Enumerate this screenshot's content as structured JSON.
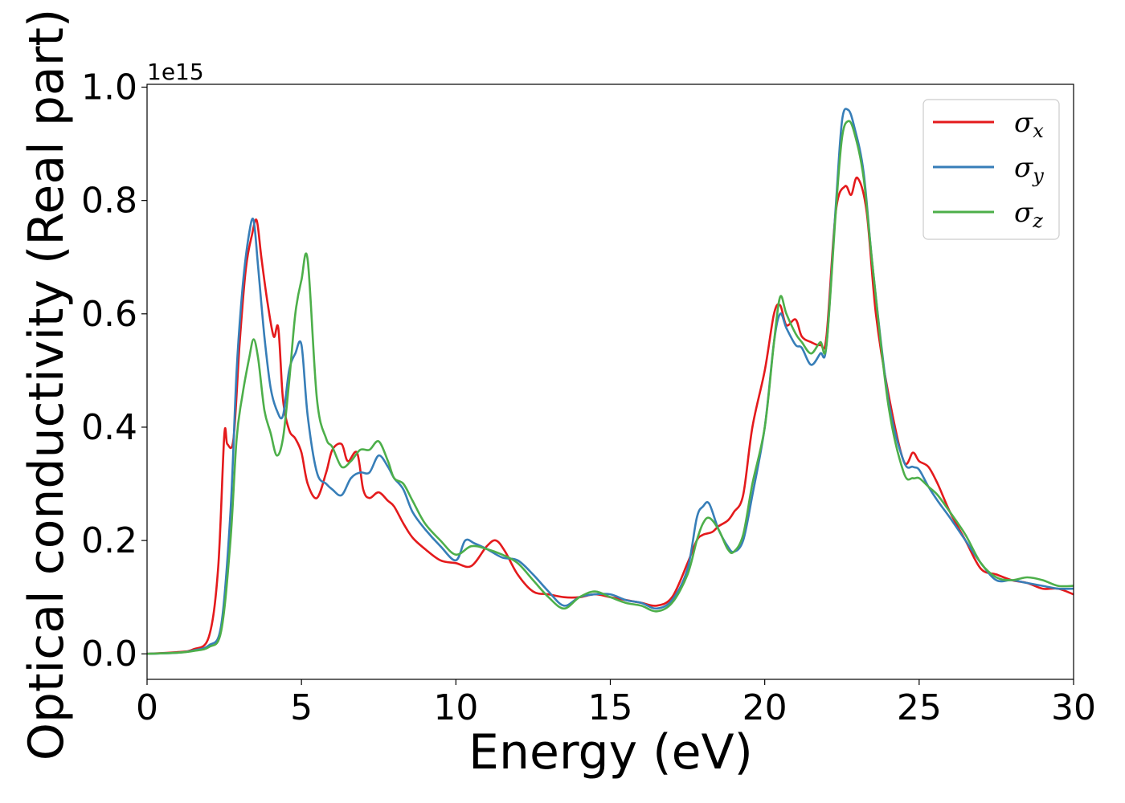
{
  "chart_data": {
    "type": "line",
    "title": "",
    "xlabel": "Energy (eV)",
    "ylabel": "Optical conductivity (Real part)",
    "y_offset_label": "1e15",
    "xlim": [
      0,
      30
    ],
    "ylim": [
      -0.045,
      1.005
    ],
    "xticks": [
      0,
      5,
      10,
      15,
      20,
      25,
      30
    ],
    "xtick_labels": [
      "0",
      "5",
      "10",
      "15",
      "20",
      "25",
      "30"
    ],
    "yticks": [
      0.0,
      0.2,
      0.4,
      0.6,
      0.8,
      1.0
    ],
    "ytick_labels": [
      "0.0",
      "0.2",
      "0.4",
      "0.6",
      "0.8",
      "1.0"
    ],
    "grid": false,
    "legend_position": "top-right",
    "series": [
      {
        "name": "σx",
        "symbol": "σ",
        "subscript": "x",
        "color": "#e41a1c",
        "x": [
          0,
          1,
          1.5,
          2,
          2.3,
          2.5,
          2.6,
          2.8,
          3.0,
          3.2,
          3.4,
          3.55,
          3.7,
          3.9,
          4.1,
          4.25,
          4.4,
          4.6,
          4.8,
          5.0,
          5.2,
          5.5,
          5.8,
          6.0,
          6.3,
          6.5,
          6.8,
          7.0,
          7.2,
          7.5,
          7.8,
          8.0,
          8.3,
          8.6,
          9.0,
          9.5,
          10.0,
          10.5,
          11.0,
          11.3,
          11.6,
          12.0,
          12.5,
          13.0,
          13.5,
          14.0,
          14.5,
          15.0,
          15.5,
          16.0,
          16.5,
          17.0,
          17.5,
          17.8,
          18.0,
          18.3,
          18.5,
          18.8,
          19.0,
          19.3,
          19.6,
          20.0,
          20.3,
          20.5,
          20.7,
          21.0,
          21.2,
          21.5,
          21.8,
          22.0,
          22.3,
          22.6,
          22.8,
          23.0,
          23.3,
          23.6,
          24.0,
          24.5,
          24.8,
          25.0,
          25.3,
          25.6,
          26.0,
          26.5,
          27.0,
          27.5,
          28.0,
          28.5,
          29.0,
          29.5,
          30.0
        ],
        "y": [
          0.0,
          0.003,
          0.008,
          0.03,
          0.15,
          0.385,
          0.37,
          0.38,
          0.55,
          0.68,
          0.74,
          0.765,
          0.7,
          0.62,
          0.56,
          0.575,
          0.45,
          0.395,
          0.38,
          0.355,
          0.3,
          0.275,
          0.32,
          0.36,
          0.37,
          0.34,
          0.355,
          0.29,
          0.275,
          0.285,
          0.27,
          0.26,
          0.23,
          0.205,
          0.185,
          0.165,
          0.16,
          0.155,
          0.19,
          0.2,
          0.18,
          0.14,
          0.11,
          0.105,
          0.1,
          0.1,
          0.105,
          0.1,
          0.095,
          0.09,
          0.085,
          0.1,
          0.16,
          0.2,
          0.21,
          0.215,
          0.225,
          0.235,
          0.25,
          0.28,
          0.4,
          0.5,
          0.6,
          0.615,
          0.58,
          0.59,
          0.56,
          0.55,
          0.545,
          0.56,
          0.78,
          0.825,
          0.81,
          0.84,
          0.78,
          0.6,
          0.46,
          0.34,
          0.355,
          0.34,
          0.33,
          0.3,
          0.25,
          0.2,
          0.15,
          0.14,
          0.13,
          0.125,
          0.115,
          0.115,
          0.105
        ]
      },
      {
        "name": "σy",
        "symbol": "σ",
        "subscript": "y",
        "color": "#377eb8",
        "x": [
          0,
          1,
          1.5,
          2,
          2.4,
          2.7,
          2.9,
          3.1,
          3.3,
          3.45,
          3.6,
          3.8,
          4.0,
          4.2,
          4.4,
          4.6,
          4.8,
          5.0,
          5.2,
          5.5,
          5.8,
          6.0,
          6.3,
          6.6,
          6.9,
          7.2,
          7.5,
          7.8,
          8.0,
          8.3,
          8.6,
          9.0,
          9.5,
          10.0,
          10.3,
          10.6,
          11.0,
          11.5,
          12.0,
          12.5,
          13.0,
          13.5,
          14.0,
          14.5,
          15.0,
          15.5,
          16.0,
          16.5,
          17.0,
          17.5,
          17.8,
          18.0,
          18.2,
          18.5,
          18.8,
          19.0,
          19.3,
          19.6,
          20.0,
          20.3,
          20.5,
          20.7,
          21.0,
          21.2,
          21.5,
          21.8,
          22.0,
          22.3,
          22.5,
          22.7,
          22.9,
          23.2,
          23.5,
          24.0,
          24.5,
          24.8,
          25.0,
          25.3,
          25.6,
          26.0,
          26.5,
          27.0,
          27.5,
          28.0,
          28.5,
          29.0,
          29.5,
          30.0
        ],
        "y": [
          0.0,
          0.002,
          0.006,
          0.015,
          0.05,
          0.25,
          0.5,
          0.65,
          0.74,
          0.765,
          0.68,
          0.56,
          0.47,
          0.43,
          0.42,
          0.5,
          0.53,
          0.545,
          0.42,
          0.32,
          0.3,
          0.29,
          0.28,
          0.31,
          0.32,
          0.32,
          0.35,
          0.33,
          0.31,
          0.29,
          0.25,
          0.22,
          0.19,
          0.165,
          0.2,
          0.195,
          0.185,
          0.17,
          0.165,
          0.14,
          0.11,
          0.085,
          0.1,
          0.105,
          0.105,
          0.095,
          0.09,
          0.08,
          0.095,
          0.15,
          0.24,
          0.26,
          0.265,
          0.22,
          0.19,
          0.18,
          0.2,
          0.28,
          0.4,
          0.55,
          0.6,
          0.575,
          0.545,
          0.54,
          0.51,
          0.53,
          0.545,
          0.79,
          0.94,
          0.96,
          0.93,
          0.85,
          0.68,
          0.45,
          0.34,
          0.33,
          0.325,
          0.295,
          0.27,
          0.24,
          0.2,
          0.16,
          0.13,
          0.13,
          0.125,
          0.12,
          0.115,
          0.115
        ]
      },
      {
        "name": "σz",
        "symbol": "σ",
        "subscript": "z",
        "color": "#4daf4a",
        "x": [
          0,
          1,
          1.5,
          2,
          2.4,
          2.7,
          2.9,
          3.1,
          3.3,
          3.45,
          3.6,
          3.8,
          4.0,
          4.2,
          4.4,
          4.6,
          4.8,
          5.0,
          5.2,
          5.5,
          5.8,
          6.0,
          6.3,
          6.6,
          6.9,
          7.2,
          7.5,
          7.8,
          8.0,
          8.3,
          8.6,
          9.0,
          9.5,
          10.0,
          10.5,
          11.0,
          11.5,
          12.0,
          12.5,
          13.0,
          13.5,
          14.0,
          14.5,
          15.0,
          15.5,
          16.0,
          16.5,
          17.0,
          17.5,
          17.8,
          18.0,
          18.2,
          18.5,
          18.8,
          19.0,
          19.3,
          19.6,
          20.0,
          20.3,
          20.5,
          20.7,
          21.0,
          21.2,
          21.5,
          21.8,
          22.0,
          22.3,
          22.5,
          22.7,
          22.9,
          23.2,
          23.5,
          24.0,
          24.5,
          24.8,
          25.0,
          25.3,
          25.6,
          26.0,
          26.5,
          27.0,
          27.5,
          28.0,
          28.5,
          29.0,
          29.5,
          30.0
        ],
        "y": [
          0.0,
          0.002,
          0.005,
          0.012,
          0.04,
          0.2,
          0.38,
          0.46,
          0.52,
          0.555,
          0.52,
          0.43,
          0.39,
          0.35,
          0.38,
          0.48,
          0.6,
          0.66,
          0.695,
          0.45,
          0.38,
          0.365,
          0.33,
          0.34,
          0.36,
          0.36,
          0.375,
          0.34,
          0.31,
          0.3,
          0.27,
          0.23,
          0.2,
          0.175,
          0.19,
          0.185,
          0.175,
          0.16,
          0.13,
          0.1,
          0.08,
          0.1,
          0.11,
          0.1,
          0.09,
          0.085,
          0.075,
          0.09,
          0.14,
          0.2,
          0.23,
          0.24,
          0.22,
          0.185,
          0.18,
          0.21,
          0.3,
          0.4,
          0.55,
          0.63,
          0.6,
          0.565,
          0.55,
          0.53,
          0.55,
          0.545,
          0.78,
          0.91,
          0.94,
          0.92,
          0.84,
          0.68,
          0.44,
          0.32,
          0.31,
          0.31,
          0.295,
          0.28,
          0.25,
          0.21,
          0.16,
          0.135,
          0.13,
          0.135,
          0.13,
          0.12,
          0.12
        ]
      }
    ]
  }
}
